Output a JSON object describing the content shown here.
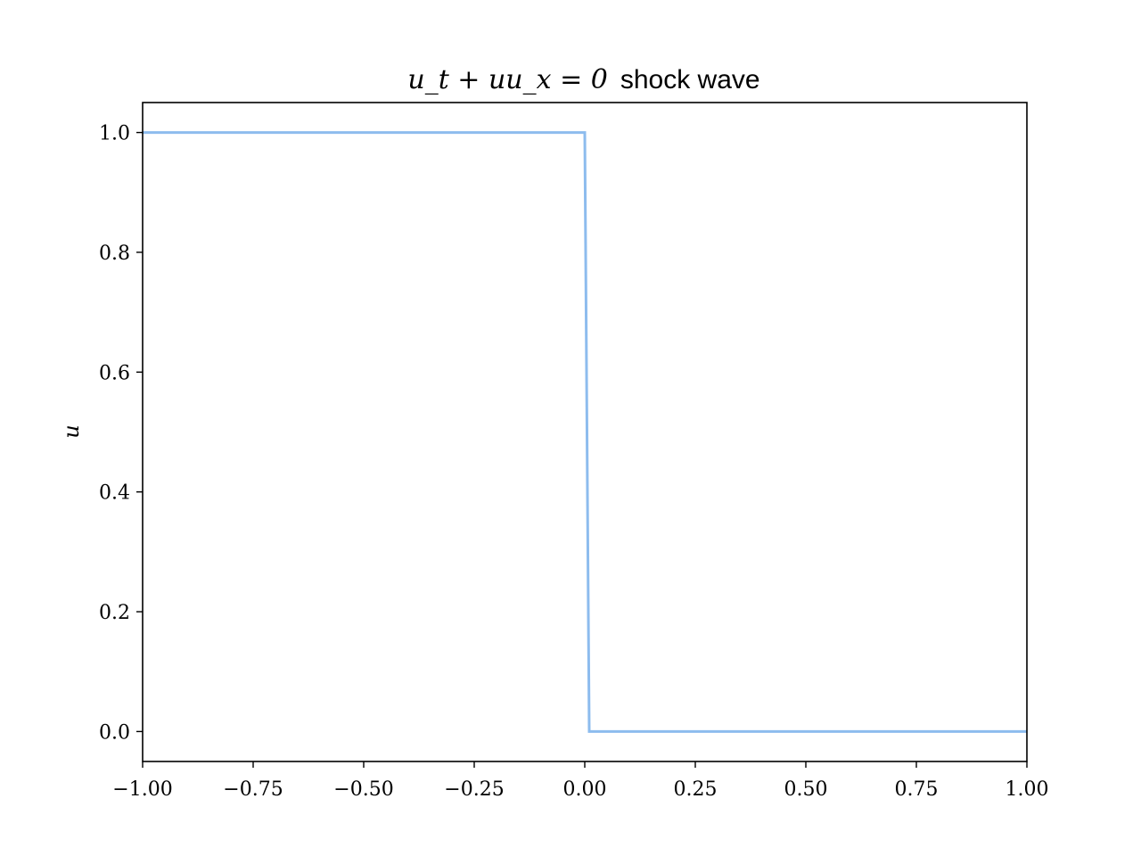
{
  "chart_data": {
    "type": "line",
    "title_math": "u_t + uu_x = 0",
    "title_text": "shock wave",
    "xlabel": "",
    "ylabel": "u",
    "xlim": [
      -1.0,
      1.0
    ],
    "ylim": [
      -0.05,
      1.05
    ],
    "xticks": [
      -1.0,
      -0.75,
      -0.5,
      -0.25,
      0.0,
      0.25,
      0.5,
      0.75,
      1.0
    ],
    "xtick_labels": [
      "−1.00",
      "−0.75",
      "−0.50",
      "−0.25",
      "0.00",
      "0.25",
      "0.50",
      "0.75",
      "1.00"
    ],
    "yticks": [
      0.0,
      0.2,
      0.4,
      0.6,
      0.8,
      1.0
    ],
    "ytick_labels": [
      "0.0",
      "0.2",
      "0.4",
      "0.6",
      "0.8",
      "1.0"
    ],
    "grid": false,
    "series": [
      {
        "color": "#8dbcee",
        "x": [
          -1.0,
          0.0,
          0.01,
          1.0
        ],
        "y": [
          1.0,
          1.0,
          0.0,
          0.0
        ]
      }
    ]
  }
}
